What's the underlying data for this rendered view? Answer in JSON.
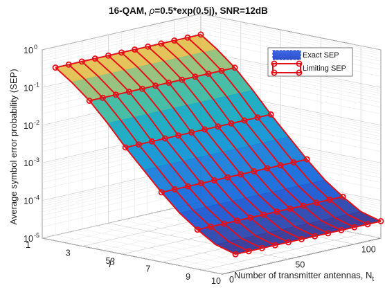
{
  "chart_data": {
    "type": "surface3d",
    "title_prefix": "16-QAM, ",
    "title_rho": "ρ",
    "title_suffix": "=0.5*exp(0.5j), SNR=12dB",
    "zlabel": "Average symbol error probability (SEP)",
    "xlabel": "Number of transmitter antennas, N",
    "xlabel_sub": "t",
    "ylabel": "β",
    "zscale": "log",
    "zlim": [
      1e-05,
      1
    ],
    "x_ticks": [
      "0",
      "50",
      "100"
    ],
    "y_ticks": [
      "1",
      "3",
      "5",
      "7",
      "9",
      "10"
    ],
    "z_ticks": [
      {
        "base": "10",
        "exp": "0"
      },
      {
        "base": "10",
        "exp": "-1"
      },
      {
        "base": "10",
        "exp": "-2"
      },
      {
        "base": "10",
        "exp": "-3"
      },
      {
        "base": "10",
        "exp": "-4"
      },
      {
        "base": "10",
        "exp": "-5"
      }
    ],
    "xlim": [
      0,
      120
    ],
    "ylim": [
      1,
      10
    ],
    "grid": true,
    "legend_position": "top-right",
    "legend": [
      "Exact SEP",
      "Limiting SEP"
    ],
    "nt_values": [
      10,
      20,
      30,
      40,
      50,
      60,
      70,
      80,
      90,
      100,
      110,
      120
    ],
    "beta_values": [
      1,
      1.8,
      2.7,
      3.6,
      4.5,
      5.4,
      6.3,
      7.2,
      8.1,
      9,
      10
    ],
    "log10_sep_by_beta": [
      -0.55,
      -0.85,
      -1.25,
      -1.75,
      -2.3,
      -2.8,
      -3.3,
      -3.75,
      -4.1,
      -4.4,
      -4.55
    ],
    "series": [
      {
        "name": "Exact SEP",
        "style": "surface",
        "colormap": "parula"
      },
      {
        "name": "Limiting SEP",
        "style": "line-marker",
        "color": "#e3101a"
      }
    ]
  }
}
